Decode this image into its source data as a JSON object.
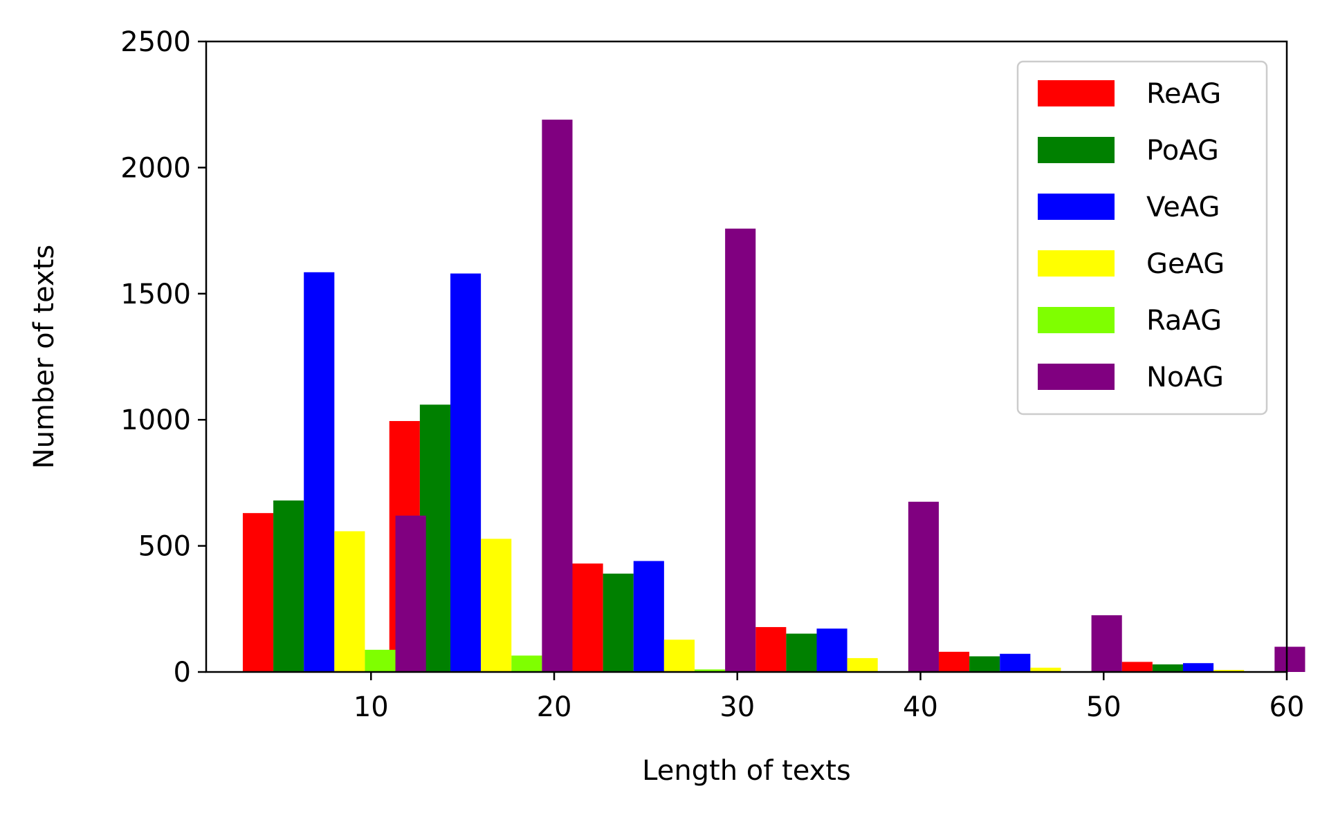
{
  "chart_data": {
    "type": "bar",
    "title": "",
    "xlabel": "Length of texts",
    "ylabel": "Number of texts",
    "xlim": [
      1,
      60
    ],
    "ylim": [
      0,
      2500
    ],
    "xticks": [
      10,
      20,
      30,
      40,
      50,
      60
    ],
    "yticks": [
      0,
      500,
      1000,
      1500,
      2000,
      2500
    ],
    "bin_width": 10,
    "bin_starts": [
      3,
      11,
      21,
      31,
      41,
      51
    ],
    "grid": false,
    "legend_position": "top-right",
    "series": [
      {
        "name": "ReAG",
        "color": "#ff0000",
        "values": [
          630,
          995,
          430,
          178,
          80,
          40
        ]
      },
      {
        "name": "PoAG",
        "color": "#008000",
        "values": [
          680,
          1060,
          390,
          152,
          62,
          30
        ]
      },
      {
        "name": "VeAG",
        "color": "#0000ff",
        "values": [
          1585,
          1580,
          440,
          172,
          72,
          35
        ]
      },
      {
        "name": "GeAG",
        "color": "#ffff00",
        "values": [
          558,
          528,
          128,
          55,
          17,
          8
        ]
      },
      {
        "name": "RaAG",
        "color": "#7fff00",
        "values": [
          88,
          65,
          10,
          0,
          0,
          0
        ]
      },
      {
        "name": "NoAG",
        "color": "#800080",
        "values": [
          620,
          2190,
          1758,
          675,
          225,
          100
        ]
      }
    ]
  }
}
